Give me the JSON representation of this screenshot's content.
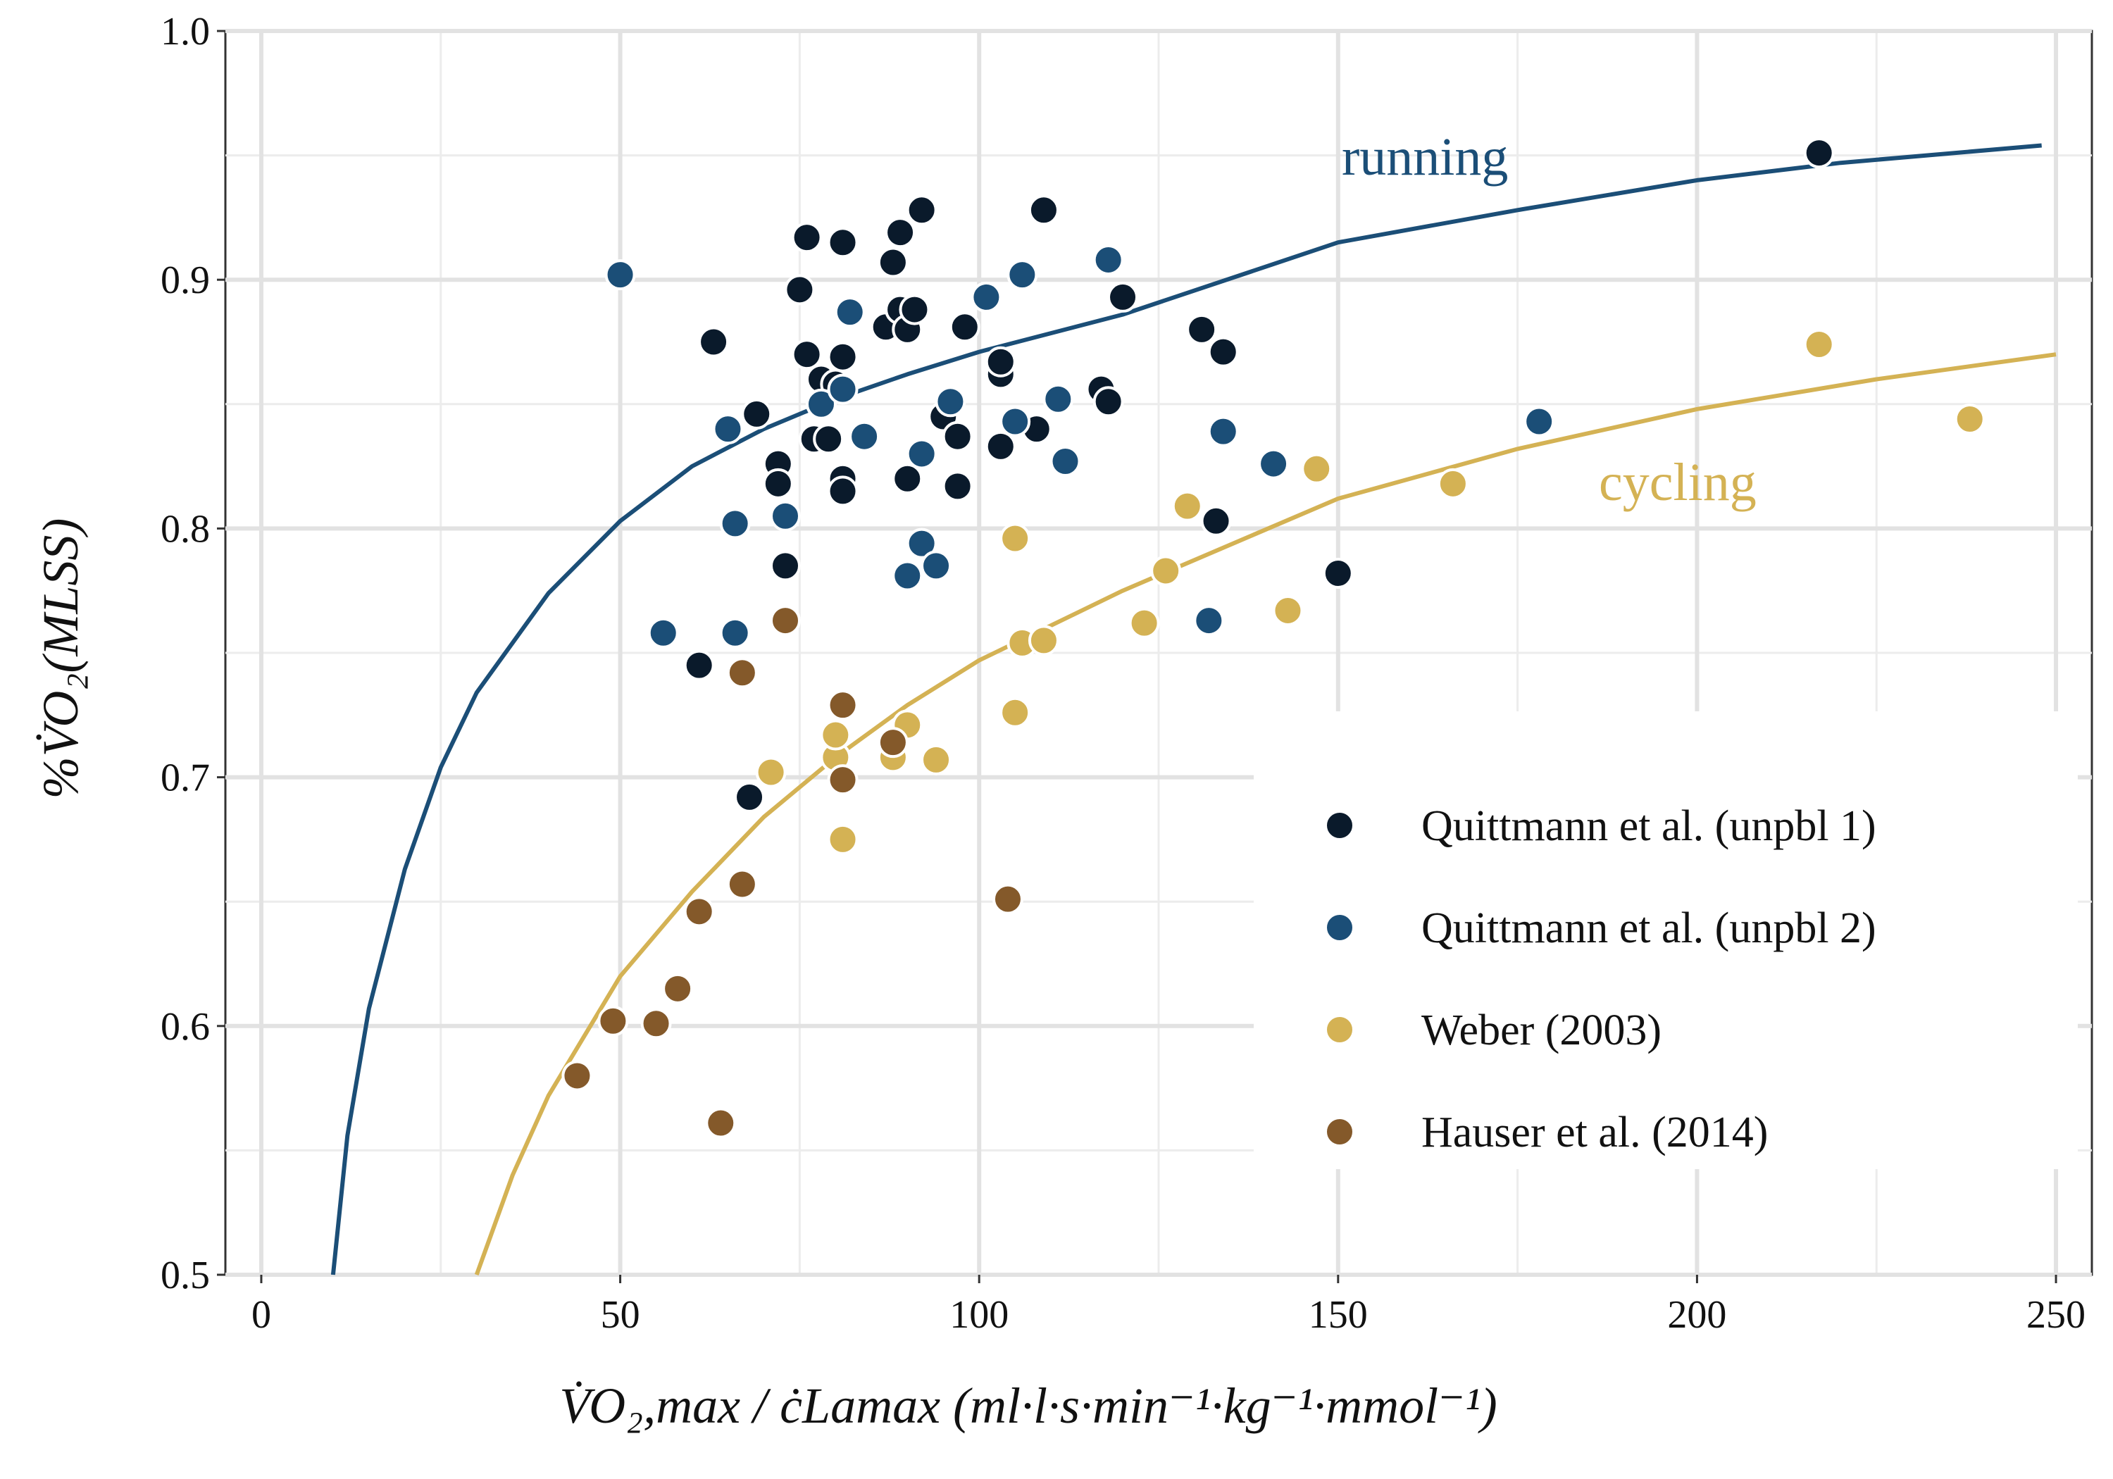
{
  "chart_data": {
    "type": "scatter",
    "xlim": [
      -5,
      255
    ],
    "ylim": [
      0.5,
      1.0
    ],
    "x_ticks": [
      0,
      50,
      100,
      150,
      200,
      250
    ],
    "y_ticks": [
      0.5,
      0.6,
      0.7,
      0.8,
      0.9,
      1.0
    ],
    "x_tick_labels": [
      "0",
      "50",
      "100",
      "150",
      "200",
      "250"
    ],
    "y_tick_labels": [
      "0.5",
      "0.6",
      "0.7",
      "0.8",
      "0.9",
      "1.0"
    ],
    "grid": true,
    "legend_position": "bottom-right",
    "xlabel": "V̇O₂,max / ċLamax (ml·l·s·min⁻¹·kg⁻¹·mmol⁻¹)",
    "ylabel": "%V̇O₂(MLSS)",
    "curves": [
      {
        "name": "running",
        "color": "#1b4e77",
        "x": [
          10,
          12,
          15,
          20,
          25,
          30,
          40,
          50,
          60,
          70,
          80,
          90,
          100,
          120,
          150,
          175,
          200,
          220,
          248
        ],
        "y": [
          0.5,
          0.556,
          0.607,
          0.663,
          0.704,
          0.734,
          0.774,
          0.803,
          0.825,
          0.84,
          0.852,
          0.862,
          0.871,
          0.886,
          0.915,
          0.928,
          0.94,
          0.947,
          0.954
        ]
      },
      {
        "name": "cycling",
        "color": "#d4b254",
        "x": [
          30,
          35,
          40,
          50,
          60,
          70,
          80,
          90,
          100,
          120,
          150,
          175,
          200,
          225,
          250
        ],
        "y": [
          0.5,
          0.54,
          0.572,
          0.62,
          0.654,
          0.684,
          0.708,
          0.729,
          0.747,
          0.775,
          0.812,
          0.832,
          0.848,
          0.86,
          0.87
        ]
      }
    ],
    "series": [
      {
        "name": "Quittmann et al. (unpbl 1)",
        "color": "#0a1a2b",
        "points": [
          [
            63,
            0.875
          ],
          [
            69,
            0.846
          ],
          [
            72,
            0.826
          ],
          [
            72,
            0.818
          ],
          [
            73,
            0.785
          ],
          [
            75,
            0.896
          ],
          [
            76,
            0.917
          ],
          [
            76,
            0.87
          ],
          [
            77,
            0.836
          ],
          [
            78,
            0.86
          ],
          [
            79,
            0.836
          ],
          [
            80,
            0.858
          ],
          [
            81,
            0.869
          ],
          [
            81,
            0.915
          ],
          [
            81,
            0.82
          ],
          [
            81,
            0.815
          ],
          [
            87,
            0.881
          ],
          [
            88,
            0.907
          ],
          [
            89,
            0.919
          ],
          [
            89,
            0.888
          ],
          [
            90,
            0.88
          ],
          [
            90,
            0.82
          ],
          [
            91,
            0.888
          ],
          [
            92,
            0.928
          ],
          [
            95,
            0.845
          ],
          [
            97,
            0.837
          ],
          [
            97,
            0.817
          ],
          [
            98,
            0.881
          ],
          [
            103,
            0.833
          ],
          [
            103,
            0.862
          ],
          [
            103,
            0.867
          ],
          [
            108,
            0.84
          ],
          [
            109,
            0.928
          ],
          [
            117,
            0.856
          ],
          [
            118,
            0.851
          ],
          [
            120,
            0.893
          ],
          [
            131,
            0.88
          ],
          [
            133,
            0.803
          ],
          [
            134,
            0.871
          ],
          [
            150,
            0.782
          ],
          [
            217,
            0.951
          ],
          [
            61,
            0.745
          ],
          [
            68,
            0.692
          ]
        ]
      },
      {
        "name": "Quittmann et al. (unpbl 2)",
        "color": "#1b4e77",
        "points": [
          [
            50,
            0.902
          ],
          [
            56,
            0.758
          ],
          [
            65,
            0.84
          ],
          [
            66,
            0.802
          ],
          [
            66,
            0.758
          ],
          [
            73,
            0.805
          ],
          [
            78,
            0.85
          ],
          [
            81,
            0.856
          ],
          [
            82,
            0.887
          ],
          [
            84,
            0.837
          ],
          [
            90,
            0.781
          ],
          [
            92,
            0.83
          ],
          [
            92,
            0.794
          ],
          [
            94,
            0.785
          ],
          [
            96,
            0.851
          ],
          [
            101,
            0.893
          ],
          [
            105,
            0.843
          ],
          [
            106,
            0.902
          ],
          [
            111,
            0.852
          ],
          [
            112,
            0.827
          ],
          [
            118,
            0.908
          ],
          [
            132,
            0.763
          ],
          [
            134,
            0.839
          ],
          [
            141,
            0.826
          ],
          [
            178,
            0.843
          ]
        ]
      },
      {
        "name": "Weber (2003)",
        "color": "#d4b254",
        "points": [
          [
            71,
            0.702
          ],
          [
            80,
            0.708
          ],
          [
            80,
            0.717
          ],
          [
            81,
            0.675
          ],
          [
            88,
            0.708
          ],
          [
            90,
            0.721
          ],
          [
            94,
            0.707
          ],
          [
            105,
            0.726
          ],
          [
            105,
            0.796
          ],
          [
            106,
            0.754
          ],
          [
            109,
            0.755
          ],
          [
            123,
            0.762
          ],
          [
            126,
            0.783
          ],
          [
            129,
            0.809
          ],
          [
            143,
            0.767
          ],
          [
            147,
            0.824
          ],
          [
            166,
            0.818
          ],
          [
            217,
            0.874
          ],
          [
            238,
            0.844
          ]
        ]
      },
      {
        "name": "Hauser et al. (2014)",
        "color": "#84592a",
        "points": [
          [
            44,
            0.58
          ],
          [
            49,
            0.602
          ],
          [
            55,
            0.601
          ],
          [
            58,
            0.615
          ],
          [
            61,
            0.646
          ],
          [
            64,
            0.561
          ],
          [
            67,
            0.657
          ],
          [
            67,
            0.742
          ],
          [
            73,
            0.763
          ],
          [
            81,
            0.729
          ],
          [
            81,
            0.699
          ],
          [
            88,
            0.714
          ],
          [
            104,
            0.651
          ]
        ]
      }
    ]
  }
}
